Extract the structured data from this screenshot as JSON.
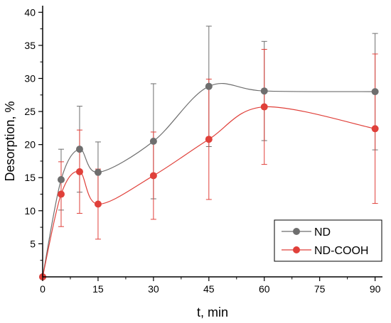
{
  "chart_data": {
    "type": "line",
    "xlabel": "t, min",
    "ylabel": "Desorption, %",
    "xlim": [
      0,
      92
    ],
    "ylim": [
      0,
      41
    ],
    "x_ticks": [
      0,
      15,
      30,
      45,
      60,
      75,
      90
    ],
    "y_ticks": [
      5,
      10,
      15,
      20,
      25,
      30,
      35,
      40
    ],
    "legend_position": "bottom-right",
    "grid": false,
    "series": [
      {
        "name": "ND",
        "color": "#6e6e6e",
        "x": [
          0,
          5,
          10,
          15,
          30,
          45,
          60,
          90
        ],
        "y": [
          0,
          14.7,
          19.3,
          15.8,
          20.5,
          28.8,
          28.1,
          28.0
        ],
        "err_upper": [
          0,
          19.3,
          25.8,
          20.4,
          29.2,
          37.9,
          35.6,
          36.8
        ],
        "err_lower": [
          0,
          10.1,
          12.8,
          11.2,
          11.8,
          19.7,
          20.6,
          19.2
        ]
      },
      {
        "name": "ND-COOH",
        "color": "#e0403a",
        "x": [
          0,
          5,
          10,
          15,
          30,
          45,
          60,
          90
        ],
        "y": [
          0,
          12.5,
          15.9,
          11.0,
          15.3,
          20.8,
          25.7,
          22.4
        ],
        "err_upper": [
          0,
          17.4,
          22.2,
          16.3,
          21.9,
          29.9,
          34.4,
          33.7
        ],
        "err_lower": [
          0,
          7.6,
          9.6,
          5.7,
          8.7,
          11.7,
          17.0,
          11.1
        ]
      }
    ]
  }
}
